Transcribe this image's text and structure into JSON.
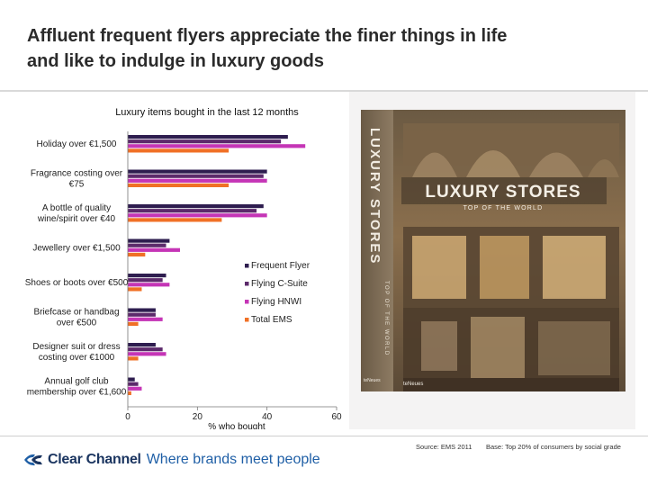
{
  "slide": {
    "title_line1": "Affluent frequent flyers appreciate the finer things in life",
    "title_line2": "and like to indulge in luxury goods"
  },
  "chart_data": {
    "type": "bar",
    "orientation": "horizontal",
    "title": "Luxury items bought in the last 12 months",
    "xlabel": "% who bought",
    "ylabel": "",
    "xlim": [
      0,
      60
    ],
    "xticks": [
      "0",
      "20",
      "40",
      "60"
    ],
    "legend_position": "right",
    "categories": [
      [
        "Holiday over €1,500"
      ],
      [
        "Fragrance costing over",
        "€75"
      ],
      [
        "A bottle of quality",
        "wine/spirit over €40"
      ],
      [
        "Jewellery over €1,500"
      ],
      [
        "Shoes or boots over €500"
      ],
      [
        "Briefcase or handbag",
        "over €500"
      ],
      [
        "Designer suit or dress",
        "costing over €1000"
      ],
      [
        "Annual golf club",
        "membership over €1,600"
      ]
    ],
    "series": [
      {
        "name": "Frequent Flyer",
        "color": "#2e1d4f",
        "values": [
          46,
          40,
          39,
          12,
          11,
          8,
          8,
          2
        ]
      },
      {
        "name": "Flying C-Suite",
        "color": "#5c2a6b",
        "values": [
          44,
          39,
          37,
          11,
          10,
          8,
          10,
          3
        ]
      },
      {
        "name": "Flying HNWI",
        "color": "#c535b6",
        "values": [
          51,
          40,
          40,
          15,
          12,
          10,
          11,
          4
        ]
      },
      {
        "name": "Total EMS",
        "color": "#f07026",
        "values": [
          29,
          29,
          27,
          5,
          4,
          3,
          3,
          1
        ]
      }
    ]
  },
  "photo": {
    "cover_spine": "LUXURY STORES",
    "cover_spine_sub": "TOP OF THE WORLD",
    "cover_title": "LUXURY STORES",
    "cover_subtitle": "TOP OF THE WORLD",
    "cover_publisher": "teNeues",
    "cover_publisher_spine": "teNeues"
  },
  "footer": {
    "source": "Source: EMS 2011",
    "base": "Base: Top 20% of consumers by social grade",
    "brand_name": "Clear Channel",
    "brand_tagline": "Where brands meet people"
  }
}
